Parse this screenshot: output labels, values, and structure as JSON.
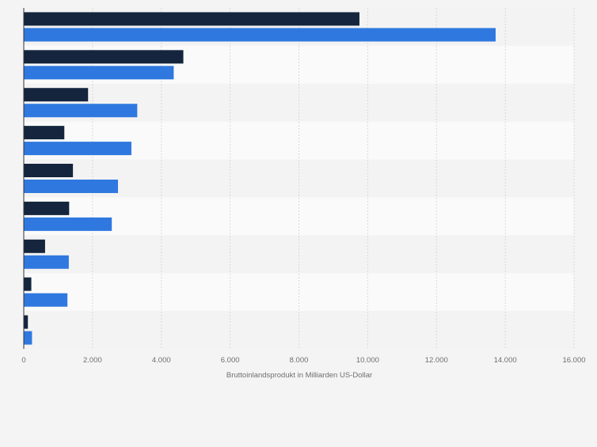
{
  "chart_data": {
    "type": "bar",
    "orientation": "horizontal",
    "title": "",
    "xlabel": "Bruttoinlandsprodukt in Milliarden US-Dollar",
    "ylabel": "",
    "xlim": [
      0,
      16000
    ],
    "x_ticks": [
      0,
      2000,
      4000,
      6000,
      8000,
      10000,
      12000,
      14000,
      16000
    ],
    "x_tick_labels": [
      "0",
      "2.000",
      "4.000",
      "6.000",
      "8.000",
      "10.000",
      "12.000",
      "14.000",
      "16.000"
    ],
    "grid": true,
    "legend": "none",
    "categories": [
      "",
      "",
      "",
      "",
      "",
      "",
      "",
      "",
      ""
    ],
    "series": [
      {
        "color": "#14253d",
        "values": [
          9760,
          4640,
          1870,
          1180,
          1430,
          1320,
          620,
          220,
          120
        ]
      },
      {
        "color": "#2f78df",
        "values": [
          13720,
          4360,
          3300,
          3130,
          2740,
          2560,
          1310,
          1270,
          240
        ]
      }
    ]
  }
}
